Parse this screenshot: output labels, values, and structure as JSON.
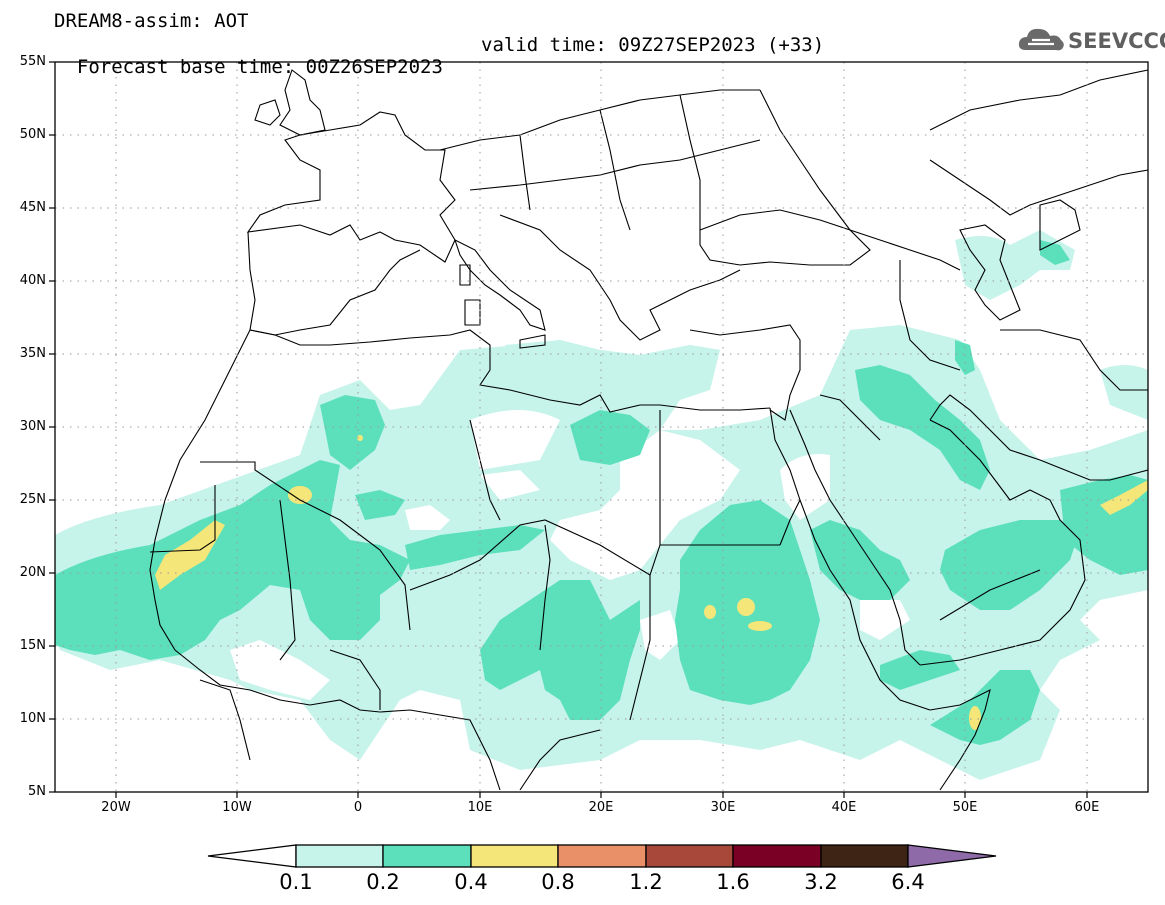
{
  "title": {
    "line1": "DREAM8-assim: AOT",
    "base_time": "Forecast base time: 00Z26SEP2023",
    "valid_time": "valid time: 09Z27SEP2023 (+33)"
  },
  "logo": {
    "text": "SEEVCCC",
    "icon": "cloud-icon"
  },
  "axes": {
    "lat_labels": [
      "55N",
      "50N",
      "45N",
      "40N",
      "35N",
      "30N",
      "25N",
      "20N",
      "15N",
      "10N",
      "5N"
    ],
    "lon_labels": [
      "20W",
      "10W",
      "0",
      "10E",
      "20E",
      "30E",
      "40E",
      "50E",
      "60E"
    ],
    "lon_range": [
      -25,
      65
    ],
    "lat_range": [
      5,
      55
    ]
  },
  "colorbar": {
    "labels": [
      "0.1",
      "0.2",
      "0.4",
      "0.8",
      "1.2",
      "1.6",
      "3.2",
      "6.4"
    ],
    "colors": [
      "#ffffff",
      "#c6f3ea",
      "#5ce0bc",
      "#f5e67a",
      "#ea9068",
      "#a8483a",
      "#7a0026",
      "#3d2414",
      "#8e6ba8"
    ]
  }
}
